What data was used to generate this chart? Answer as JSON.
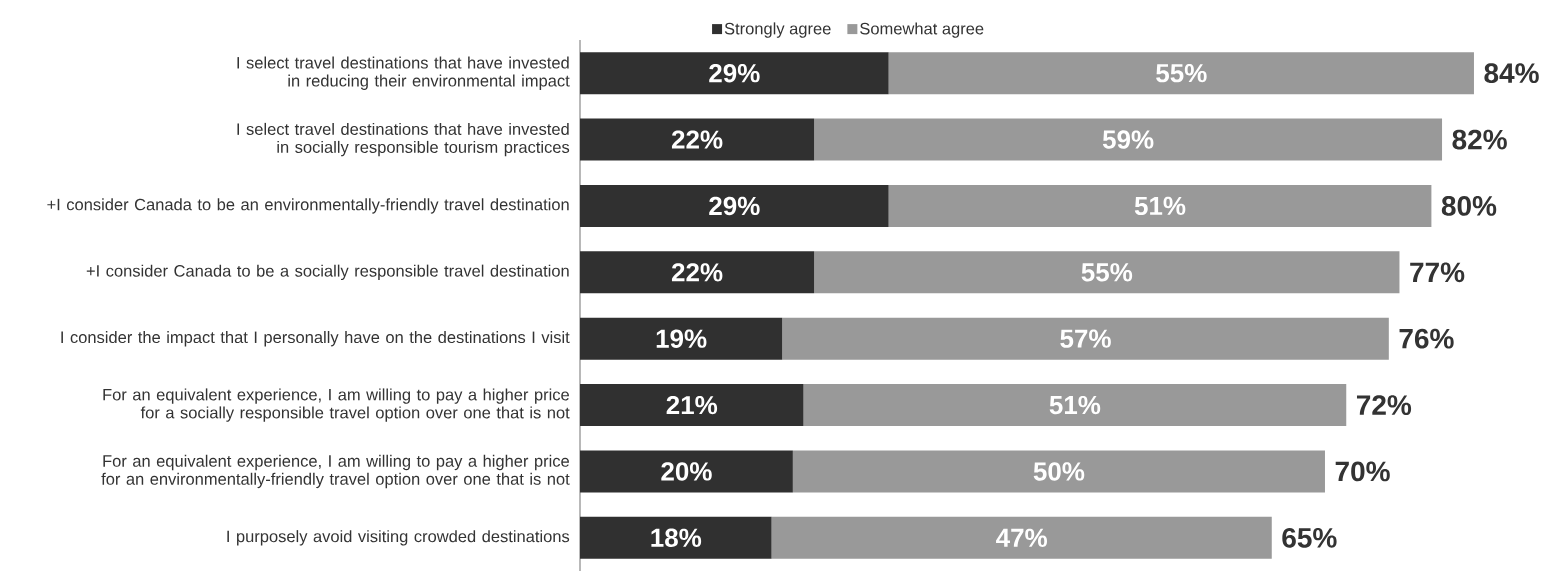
{
  "chart_data": {
    "type": "bar",
    "orientation": "horizontal",
    "stacked": true,
    "categories": [
      "I select travel destinations that have invested in reducing their environmental impact",
      "I select travel destinations that have invested in socially responsible tourism practices",
      "+I consider Canada to be an environmentally-friendly travel destination",
      "+I consider Canada to be a socially responsible travel destination",
      "I consider the impact that I personally have  on the destinations I visit",
      "For an equivalent experience, I am willing to pay a higher price for a socially responsible travel option over one that is not",
      "For an equivalent experience, I am willing to pay a higher price for an environmentally-friendly travel option over one that is not",
      "I purposely avoid visiting crowded destinations"
    ],
    "series": [
      {
        "name": "Strongly agree",
        "color": "#303030",
        "values": [
          29,
          22,
          29,
          22,
          19,
          21,
          20,
          18
        ],
        "value_labels": [
          "29%",
          "22%",
          "29%",
          "22%",
          "19%",
          "21%",
          "20%",
          "18%"
        ]
      },
      {
        "name": "Somewhat agree",
        "color": "#999999",
        "values": [
          55,
          59,
          51,
          55,
          57,
          51,
          50,
          47
        ],
        "value_labels": [
          "55%",
          "59%",
          "51%",
          "55%",
          "57%",
          "51%",
          "50%",
          "47%"
        ]
      }
    ],
    "totals": [
      "84%",
      "82%",
      "80%",
      "77%",
      "76%",
      "72%",
      "70%",
      "65%"
    ],
    "tick_labels": "y",
    "legend": "top"
  }
}
